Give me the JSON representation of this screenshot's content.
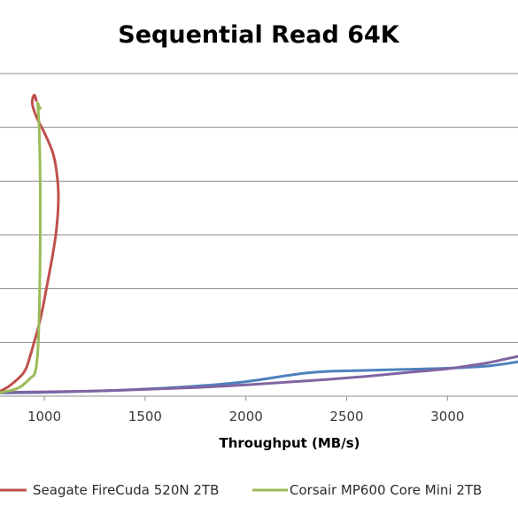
{
  "chart_data": {
    "type": "line",
    "title": "Sequential Read 64K",
    "xlabel": "Throughput (MB/s)",
    "ylabel": "",
    "xticks": [
      1000,
      1500,
      2000,
      2500,
      3000
    ],
    "xlim": [
      780,
      3350
    ],
    "ylim": [
      0,
      6
    ],
    "grid": true,
    "legend_position": "bottom",
    "series": [
      {
        "name": "Seagate FireCuda 520N 2TB",
        "color": "#c0504d",
        "x": [
          760,
          830,
          900,
          930,
          945,
          968,
          990,
          1010,
          1040,
          1060,
          1070,
          1060,
          1040,
          1000,
          960,
          940,
          950,
          960
        ],
        "y": [
          0.05,
          0.2,
          0.45,
          0.75,
          0.95,
          1.25,
          1.6,
          2.0,
          2.6,
          3.1,
          3.7,
          4.2,
          4.55,
          4.9,
          5.2,
          5.45,
          5.6,
          5.5
        ]
      },
      {
        "name": "Corsair MP600 Core Mini 2TB",
        "color": "#9bbb59",
        "x": [
          760,
          870,
          935,
          950,
          962,
          970,
          975,
          978,
          980,
          980,
          978,
          975,
          970,
          967,
          972,
          980
        ],
        "y": [
          0.05,
          0.15,
          0.35,
          0.4,
          0.6,
          1.0,
          1.6,
          2.3,
          3.1,
          3.8,
          4.4,
          4.9,
          5.3,
          5.45,
          5.4,
          5.35
        ]
      },
      {
        "name": "",
        "color": "#4f81bd",
        "x": [
          780,
          1000,
          1300,
          1600,
          1800,
          2000,
          2200,
          2300,
          2400,
          2600,
          2800,
          3000,
          3200,
          3350
        ],
        "y": [
          0.06,
          0.07,
          0.1,
          0.15,
          0.2,
          0.27,
          0.38,
          0.43,
          0.46,
          0.48,
          0.5,
          0.52,
          0.56,
          0.64
        ]
      },
      {
        "name": "",
        "color": "#8064a2",
        "x": [
          780,
          1000,
          1300,
          1600,
          1800,
          2000,
          2200,
          2400,
          2600,
          2800,
          3000,
          3100,
          3200,
          3300,
          3350
        ],
        "y": [
          0.07,
          0.08,
          0.1,
          0.14,
          0.17,
          0.21,
          0.26,
          0.31,
          0.37,
          0.44,
          0.51,
          0.56,
          0.62,
          0.7,
          0.74
        ]
      }
    ]
  }
}
